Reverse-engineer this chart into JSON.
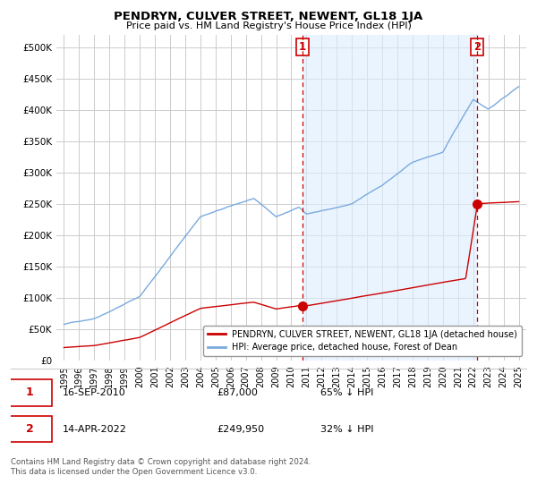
{
  "title": "PENDRYN, CULVER STREET, NEWENT, GL18 1JA",
  "subtitle": "Price paid vs. HM Land Registry's House Price Index (HPI)",
  "ylim": [
    0,
    520000
  ],
  "yticks": [
    0,
    50000,
    100000,
    150000,
    200000,
    250000,
    300000,
    350000,
    400000,
    450000,
    500000
  ],
  "ytick_labels": [
    "£0",
    "£50K",
    "£100K",
    "£150K",
    "£200K",
    "£250K",
    "£300K",
    "£350K",
    "£400K",
    "£450K",
    "£500K"
  ],
  "hpi_color": "#7aaadd",
  "hpi_fill_color": "#ddeeff",
  "property_color": "#cc0000",
  "sale1_date": 2010.72,
  "sale1_price": 87000,
  "sale2_date": 2022.28,
  "sale2_price": 249950,
  "vline_color": "#cc0000",
  "background_color": "#ffffff",
  "grid_color": "#cccccc",
  "legend1_text": "PENDRYN, CULVER STREET, NEWENT, GL18 1JA (detached house)",
  "legend2_text": "HPI: Average price, detached house, Forest of Dean",
  "note1_date": "16-SEP-2010",
  "note1_price": "£87,000",
  "note1_pct": "65% ↓ HPI",
  "note2_date": "14-APR-2022",
  "note2_price": "£249,950",
  "note2_pct": "32% ↓ HPI",
  "copyright": "Contains HM Land Registry data © Crown copyright and database right 2024.\nThis data is licensed under the Open Government Licence v3.0.",
  "xmin": 1994.5,
  "xmax": 2025.5,
  "xticks": [
    1995,
    1996,
    1997,
    1998,
    1999,
    2000,
    2001,
    2002,
    2003,
    2004,
    2005,
    2006,
    2007,
    2008,
    2009,
    2010,
    2011,
    2012,
    2013,
    2014,
    2015,
    2016,
    2017,
    2018,
    2019,
    2020,
    2021,
    2022,
    2023,
    2024,
    2025
  ]
}
